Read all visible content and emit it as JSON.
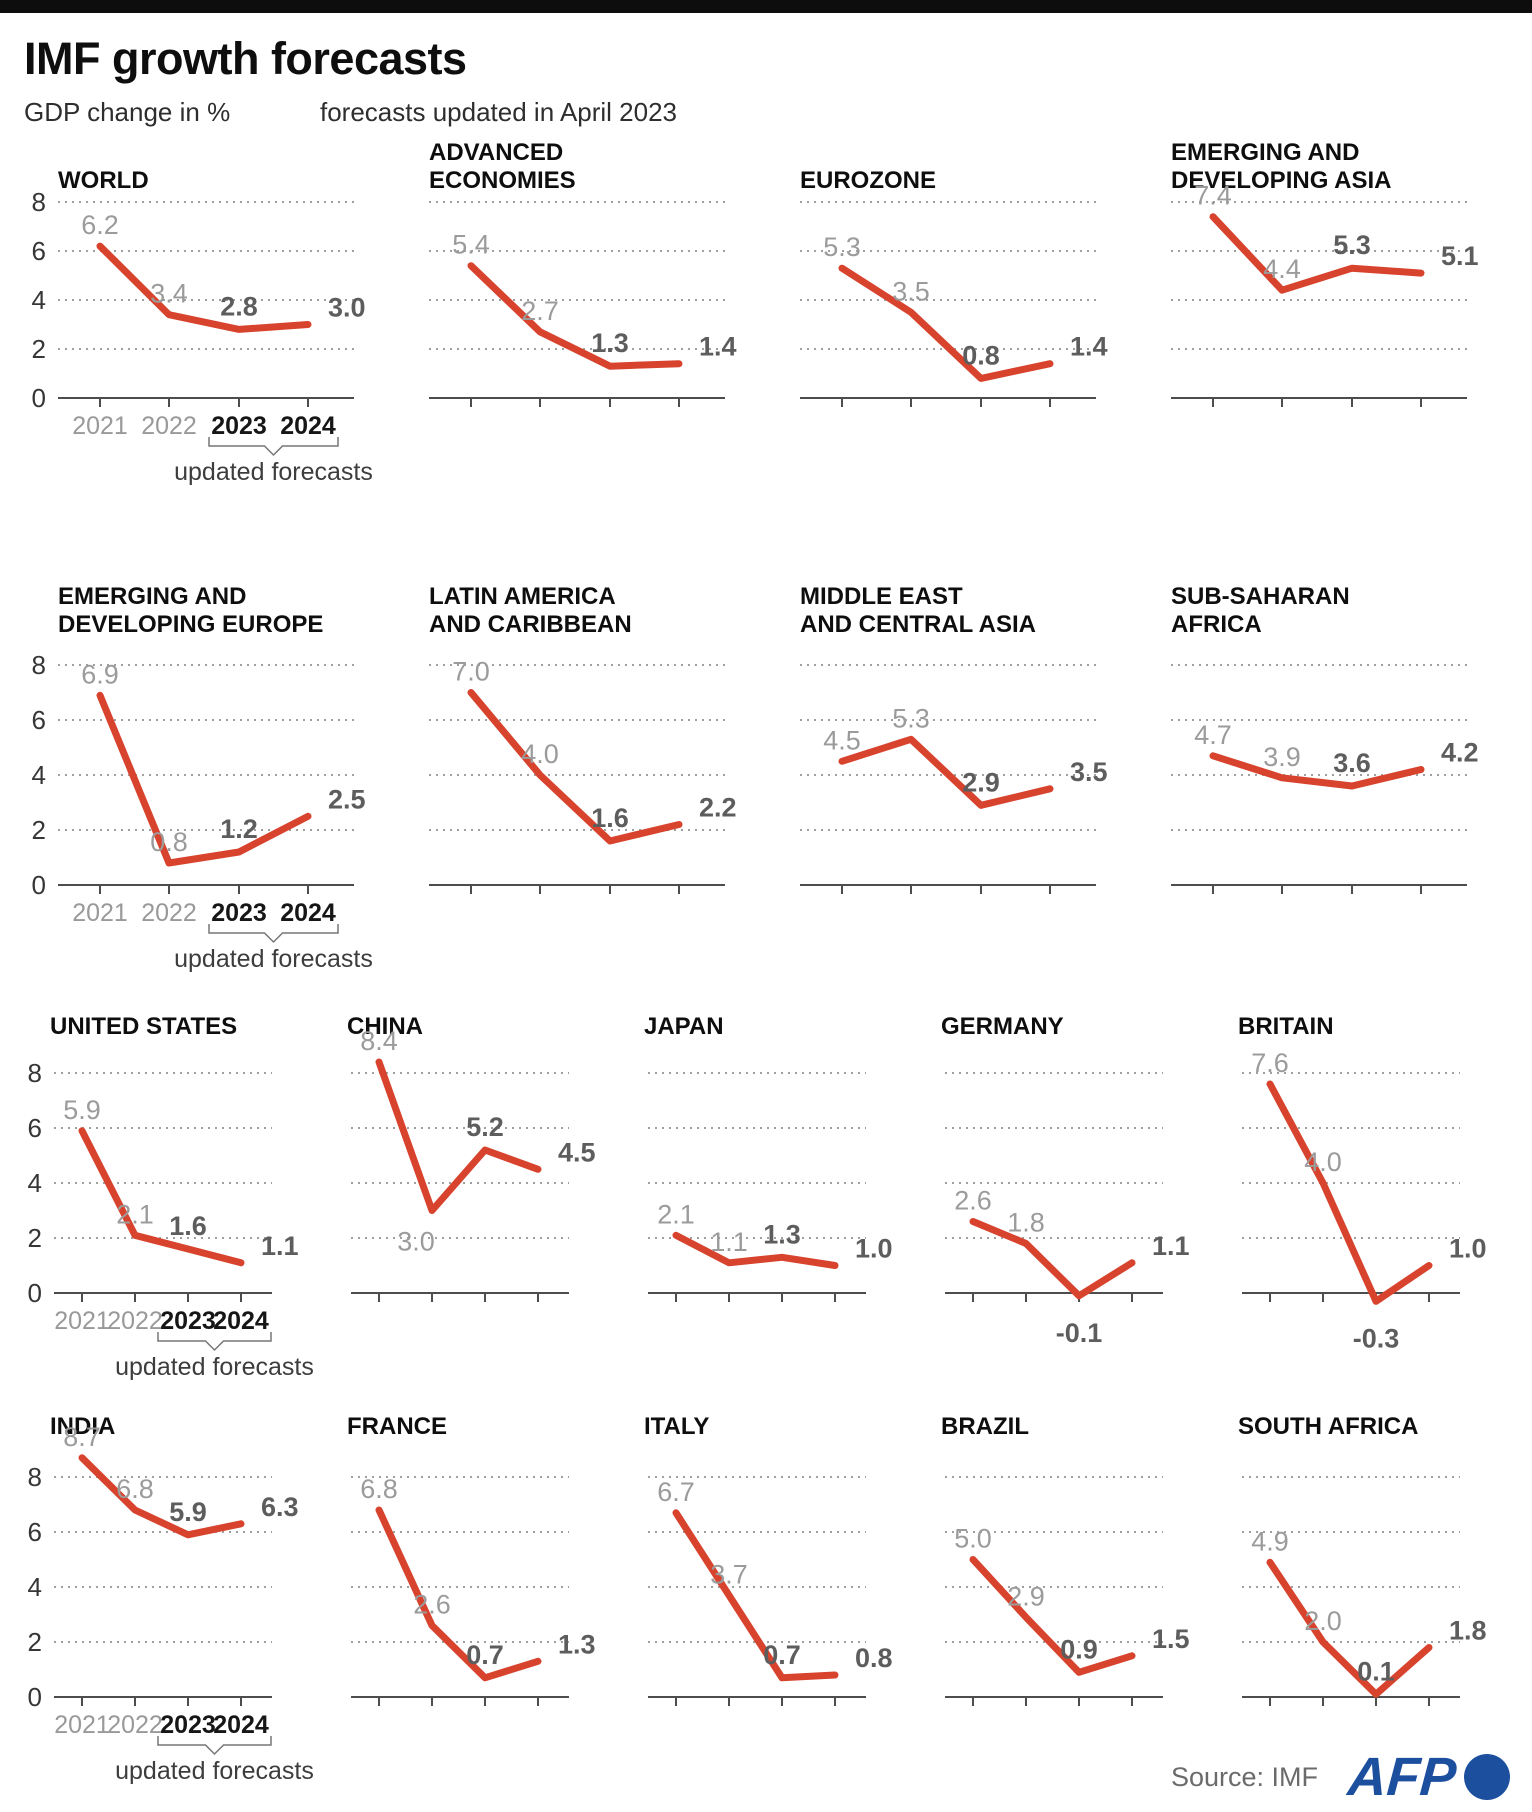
{
  "header": {
    "title": "IMF growth forecasts",
    "subtitle_left": "GDP change in %",
    "subtitle_right": "forecasts updated in April 2023"
  },
  "footer": {
    "source_label": "Source: IMF",
    "logo_text": "AFP"
  },
  "colors": {
    "line_red": "#d8432e",
    "afp_blue": "#1d4f9f",
    "grid_gray": "#9f9f9f",
    "axis_gray": "#4d4d4d"
  },
  "axis": {
    "years": [
      "2021",
      "2022",
      "2023",
      "2024"
    ],
    "y_ticks": [
      8,
      6,
      4,
      2,
      0
    ],
    "y_gridlines": [
      8,
      6,
      4,
      2
    ],
    "updated_note": "updated forecasts",
    "forecast_from_index": 2
  },
  "chart_data": [
    {
      "type": "line",
      "row": 1,
      "title": "WORLD",
      "values": [
        6.2,
        3.4,
        2.8,
        3.0
      ]
    },
    {
      "type": "line",
      "row": 1,
      "title": "ADVANCED\nECONOMIES",
      "values": [
        5.4,
        2.7,
        1.3,
        1.4
      ]
    },
    {
      "type": "line",
      "row": 1,
      "title": "EUROZONE",
      "values": [
        5.3,
        3.5,
        0.8,
        1.4
      ]
    },
    {
      "type": "line",
      "row": 1,
      "title": "EMERGING AND\nDEVELOPING ASIA",
      "values": [
        7.4,
        4.4,
        5.3,
        5.1
      ]
    },
    {
      "type": "line",
      "row": 2,
      "title": "EMERGING AND\nDEVELOPING EUROPE",
      "values": [
        6.9,
        0.8,
        1.2,
        2.5
      ]
    },
    {
      "type": "line",
      "row": 2,
      "title": "LATIN AMERICA\nAND CARIBBEAN",
      "values": [
        7.0,
        4.0,
        1.6,
        2.2
      ]
    },
    {
      "type": "line",
      "row": 2,
      "title": "MIDDLE EAST\nAND CENTRAL ASIA",
      "values": [
        4.5,
        5.3,
        2.9,
        3.5
      ]
    },
    {
      "type": "line",
      "row": 2,
      "title": "SUB-SAHARAN\nAFRICA",
      "values": [
        4.7,
        3.9,
        3.6,
        4.2
      ]
    },
    {
      "type": "line",
      "row": 3,
      "title": "UNITED STATES",
      "values": [
        5.9,
        2.1,
        1.6,
        1.1
      ]
    },
    {
      "type": "line",
      "row": 3,
      "title": "CHINA",
      "values": [
        8.4,
        3.0,
        5.2,
        4.5
      ],
      "label_hints": {
        "1": "below-left"
      }
    },
    {
      "type": "line",
      "row": 3,
      "title": "JAPAN",
      "values": [
        2.1,
        1.1,
        1.3,
        1.0
      ]
    },
    {
      "type": "line",
      "row": 3,
      "title": "GERMANY",
      "values": [
        2.6,
        1.8,
        -0.1,
        1.1
      ]
    },
    {
      "type": "line",
      "row": 3,
      "title": "BRITAIN",
      "values": [
        7.6,
        4.0,
        -0.3,
        1.0
      ]
    },
    {
      "type": "line",
      "row": 4,
      "title": "INDIA",
      "values": [
        8.7,
        6.8,
        5.9,
        6.3
      ]
    },
    {
      "type": "line",
      "row": 4,
      "title": "FRANCE",
      "values": [
        6.8,
        2.6,
        0.7,
        1.3
      ]
    },
    {
      "type": "line",
      "row": 4,
      "title": "ITALY",
      "values": [
        6.7,
        3.7,
        0.7,
        0.8
      ]
    },
    {
      "type": "line",
      "row": 4,
      "title": "BRAZIL",
      "values": [
        5.0,
        2.9,
        0.9,
        1.5
      ]
    },
    {
      "type": "line",
      "row": 4,
      "title": "SOUTH AFRICA",
      "values": [
        4.9,
        2.0,
        0.1,
        1.8
      ]
    }
  ]
}
